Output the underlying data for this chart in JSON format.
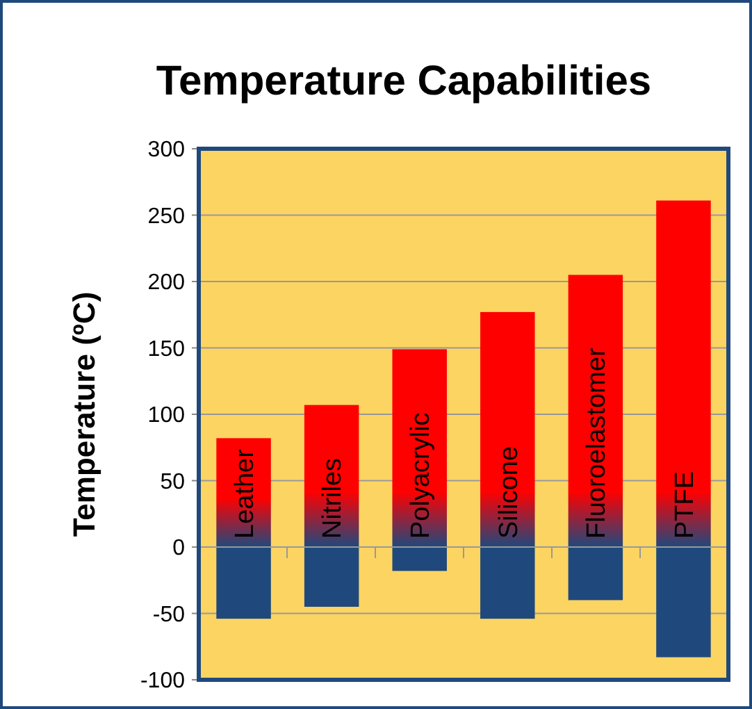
{
  "chart_data": {
    "type": "bar",
    "title": "Temperature Capabilities",
    "ylabel": "Temperature (ºC)",
    "categories": [
      "Leather",
      "Nitriles",
      "Polyacrylic",
      "Silicone",
      "Fluoroelastomer",
      "PTFE"
    ],
    "stacked": true,
    "series": [
      {
        "color": "#1f497d",
        "values": [
          -54,
          -45,
          -18,
          -54,
          -40,
          -83
        ]
      },
      {
        "color": "#ff0000",
        "values": [
          82,
          107,
          149,
          177,
          205,
          261
        ]
      }
    ],
    "ylim": [
      -100,
      300
    ],
    "yticks": [
      -100,
      -50,
      0,
      50,
      100,
      150,
      200,
      250,
      300
    ],
    "grid": "y"
  }
}
